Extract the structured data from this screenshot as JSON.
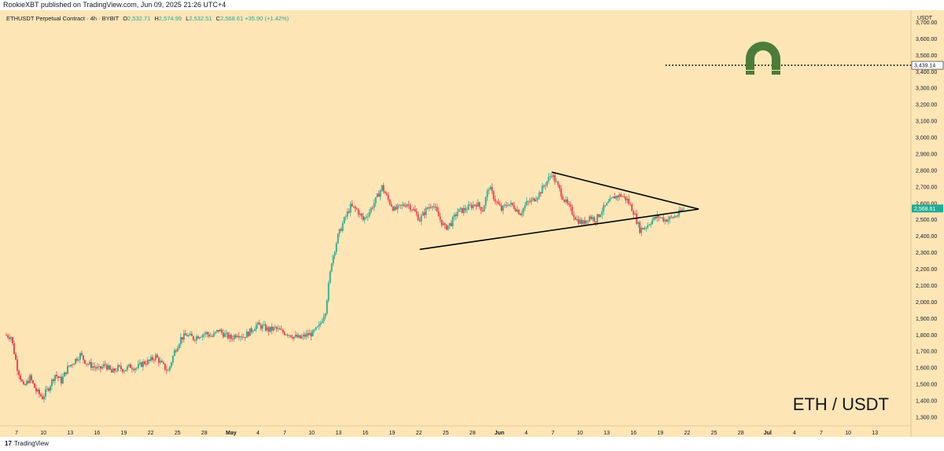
{
  "header": {
    "published_text": "RookieXBT published on TradingView.com, Jun 09, 2025 21:26 UTC+4"
  },
  "legend": {
    "symbol": "ETHUSDT Perpetual Contract · 4h · BYBIT",
    "open_label": "O",
    "open": "2,532.71",
    "high_label": "H",
    "high": "2,574.99",
    "low_label": "L",
    "low": "2,532.51",
    "close_label": "C",
    "close": "2,568.61",
    "change": "+35.90 (+1.42%)"
  },
  "footer": {
    "brand": "TradingView",
    "logo_glyph": "17"
  },
  "colors": {
    "background": "#fde5b6",
    "up": "#22ab94",
    "down": "#f23645",
    "line": "#000000",
    "magnet": "#4a7c3a"
  },
  "chart_data": {
    "type": "candlestick",
    "title": "ETH / USDT",
    "currency_label": "USDT",
    "ylim": [
      1300,
      3750
    ],
    "y_ticks": [
      "3,700.00",
      "3,600.00",
      "3,500.00",
      "3,400.00",
      "3,300.00",
      "3,200.00",
      "3,100.00",
      "3,000.00",
      "2,900.00",
      "2,800.00",
      "2,700.00",
      "2,600.00",
      "2,500.00",
      "2,400.00",
      "2,300.00",
      "2,200.00",
      "2,100.00",
      "2,000.00",
      "1,900.00",
      "1,800.00",
      "1,700.00",
      "1,600.00",
      "1,500.00",
      "1,400.00",
      "1,300.00"
    ],
    "x_ticks": [
      "7",
      "10",
      "13",
      "16",
      "19",
      "22",
      "25",
      "28",
      "May",
      "4",
      "7",
      "10",
      "13",
      "16",
      "19",
      "22",
      "25",
      "28",
      "Jun",
      "4",
      "7",
      "10",
      "13",
      "16",
      "19",
      "22",
      "25",
      "28",
      "Jul",
      "4",
      "7",
      "10",
      "13"
    ],
    "price_path": [
      [
        0,
        1800
      ],
      [
        1,
        1790
      ],
      [
        2,
        1600
      ],
      [
        3,
        1480
      ],
      [
        4,
        1540
      ],
      [
        5,
        1460
      ],
      [
        6,
        1420
      ],
      [
        7,
        1480
      ],
      [
        8,
        1560
      ],
      [
        9,
        1520
      ],
      [
        10,
        1600
      ],
      [
        11,
        1640
      ],
      [
        12,
        1680
      ],
      [
        13,
        1630
      ],
      [
        14,
        1610
      ],
      [
        15,
        1590
      ],
      [
        16,
        1620
      ],
      [
        17,
        1570
      ],
      [
        18,
        1600
      ],
      [
        19,
        1590
      ],
      [
        20,
        1610
      ],
      [
        21,
        1600
      ],
      [
        22,
        1630
      ],
      [
        23,
        1640
      ],
      [
        24,
        1670
      ],
      [
        25,
        1620
      ],
      [
        26,
        1580
      ],
      [
        27,
        1700
      ],
      [
        28,
        1780
      ],
      [
        29,
        1800
      ],
      [
        30,
        1780
      ],
      [
        31,
        1800
      ],
      [
        32,
        1810
      ],
      [
        33,
        1790
      ],
      [
        34,
        1830
      ],
      [
        35,
        1800
      ],
      [
        36,
        1780
      ],
      [
        37,
        1810
      ],
      [
        38,
        1790
      ],
      [
        39,
        1820
      ],
      [
        40,
        1860
      ],
      [
        41,
        1850
      ],
      [
        42,
        1830
      ],
      [
        43,
        1840
      ],
      [
        44,
        1820
      ],
      [
        45,
        1810
      ],
      [
        46,
        1790
      ],
      [
        47,
        1780
      ],
      [
        48,
        1800
      ],
      [
        49,
        1810
      ],
      [
        50,
        1850
      ],
      [
        51,
        1950
      ],
      [
        52,
        2250
      ],
      [
        53,
        2400
      ],
      [
        54,
        2500
      ],
      [
        55,
        2580
      ],
      [
        56,
        2560
      ],
      [
        57,
        2500
      ],
      [
        58,
        2550
      ],
      [
        59,
        2620
      ],
      [
        60,
        2700
      ],
      [
        61,
        2620
      ],
      [
        62,
        2560
      ],
      [
        63,
        2580
      ],
      [
        64,
        2600
      ],
      [
        65,
        2560
      ],
      [
        66,
        2500
      ],
      [
        67,
        2560
      ],
      [
        68,
        2600
      ],
      [
        69,
        2520
      ],
      [
        70,
        2450
      ],
      [
        71,
        2480
      ],
      [
        72,
        2550
      ],
      [
        73,
        2560
      ],
      [
        74,
        2580
      ],
      [
        75,
        2600
      ],
      [
        76,
        2560
      ],
      [
        77,
        2700
      ],
      [
        78,
        2620
      ],
      [
        79,
        2560
      ],
      [
        80,
        2600
      ],
      [
        81,
        2580
      ],
      [
        82,
        2540
      ],
      [
        83,
        2600
      ],
      [
        84,
        2620
      ],
      [
        85,
        2660
      ],
      [
        86,
        2720
      ],
      [
        87,
        2780
      ],
      [
        88,
        2700
      ],
      [
        89,
        2620
      ],
      [
        90,
        2560
      ],
      [
        91,
        2500
      ],
      [
        92,
        2480
      ],
      [
        93,
        2520
      ],
      [
        94,
        2500
      ],
      [
        95,
        2560
      ],
      [
        96,
        2600
      ],
      [
        97,
        2640
      ],
      [
        98,
        2650
      ],
      [
        99,
        2620
      ],
      [
        100,
        2550
      ],
      [
        101,
        2440
      ],
      [
        102,
        2460
      ],
      [
        103,
        2500
      ],
      [
        104,
        2520
      ],
      [
        105,
        2500
      ],
      [
        106,
        2510
      ],
      [
        107,
        2530
      ],
      [
        108,
        2568
      ]
    ],
    "triangle": {
      "upper": [
        [
          87,
          2790
        ],
        [
          108.5,
          2565
        ]
      ],
      "lower": [
        [
          66,
          2320
        ],
        [
          108.5,
          2565
        ]
      ]
    },
    "target_level": 3439.14,
    "target_label": "3,439.14",
    "last_price_label": "2,568.61",
    "annotation_icon": "magnet-icon"
  }
}
